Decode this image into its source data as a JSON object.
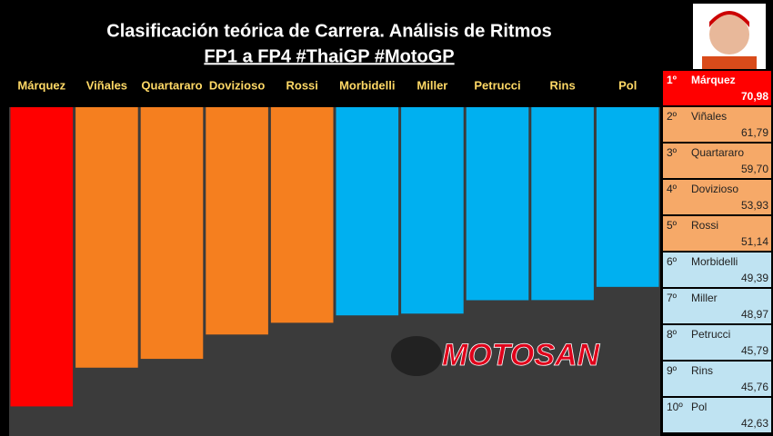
{
  "chart_data": {
    "type": "bar",
    "title": "Clasificación teórica de Carrera. Análisis de Ritmos",
    "subtitle": "FP1 a FP4 #ThaiGP #MotoGP",
    "watermark": "MOTOSAN",
    "categories": [
      "Márquez",
      "Viñales",
      "Quartararo",
      "Dovizioso",
      "Rossi",
      "Morbidelli",
      "Miller",
      "Petrucci",
      "Rins",
      "Pol"
    ],
    "values": [
      70.98,
      61.79,
      59.7,
      53.93,
      51.14,
      49.39,
      48.97,
      45.79,
      45.76,
      42.63
    ],
    "value_labels": [
      "70,98",
      "61,79",
      "59,70",
      "53,93",
      "51,14",
      "49,39",
      "48,97",
      "45,79",
      "45,76",
      "42,63"
    ],
    "ranks": [
      "1º",
      "2º",
      "3º",
      "4º",
      "5º",
      "6º",
      "7º",
      "8º",
      "9º",
      "10º"
    ],
    "colors": [
      "#ff0000",
      "#f57f1f",
      "#f57f1f",
      "#f57f1f",
      "#f57f1f",
      "#00b0f0",
      "#00b0f0",
      "#00b0f0",
      "#00b0f0",
      "#00b0f0"
    ],
    "row_colors": [
      "#ff0000",
      "#f6a968",
      "#f6a968",
      "#f6a968",
      "#f6a968",
      "#bfe3f2",
      "#bfe3f2",
      "#bfe3f2",
      "#bfe3f2",
      "#bfe3f2"
    ],
    "ylim": [
      0,
      78
    ]
  }
}
